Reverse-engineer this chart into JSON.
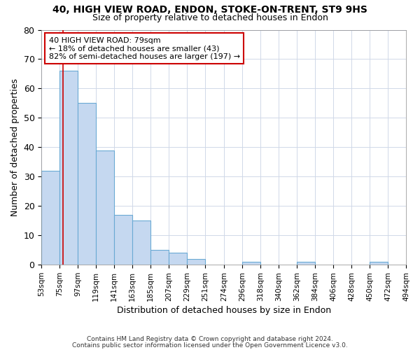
{
  "title1": "40, HIGH VIEW ROAD, ENDON, STOKE-ON-TRENT, ST9 9HS",
  "title2": "Size of property relative to detached houses in Endon",
  "xlabel": "Distribution of detached houses by size in Endon",
  "ylabel": "Number of detached properties",
  "bin_edges": [
    53,
    75,
    97,
    119,
    141,
    163,
    185,
    207,
    229,
    251,
    274,
    296,
    318,
    340,
    362,
    384,
    406,
    428,
    450,
    472,
    494
  ],
  "bar_heights": [
    32,
    66,
    55,
    39,
    17,
    15,
    5,
    4,
    2,
    0,
    0,
    1,
    0,
    0,
    1,
    0,
    0,
    0,
    1,
    0
  ],
  "bar_color": "#c5d8f0",
  "bar_edge_color": "#6aaad4",
  "property_size": 79,
  "red_line_color": "#cc0000",
  "annotation_line1": "40 HIGH VIEW ROAD: 79sqm",
  "annotation_line2": "← 18% of detached houses are smaller (43)",
  "annotation_line3": "82% of semi-detached houses are larger (197) →",
  "annotation_box_color": "#ffffff",
  "annotation_box_edge": "#cc0000",
  "ylim": [
    0,
    80
  ],
  "yticks": [
    0,
    10,
    20,
    30,
    40,
    50,
    60,
    70,
    80
  ],
  "footer1": "Contains HM Land Registry data © Crown copyright and database right 2024.",
  "footer2": "Contains public sector information licensed under the Open Government Licence v3.0."
}
